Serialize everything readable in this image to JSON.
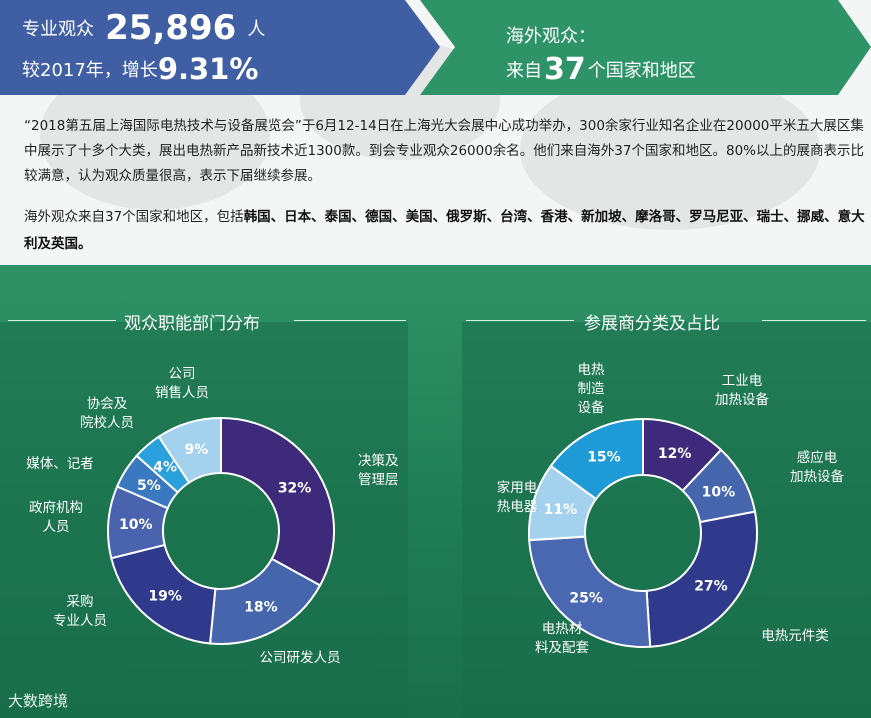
{
  "banner_left": {
    "label": "专业观众",
    "count": "25,896",
    "unit": "人",
    "compare_prefix": "较2017年，增长",
    "growth": "9.31%"
  },
  "banner_right": {
    "label": "海外观众：",
    "prefix": "来自",
    "count": "37",
    "suffix": "个国家和地区"
  },
  "intro": "“2018第五届上海国际电热技术与设备展览会”于6月12-14日在上海光大会展中心成功举办，300余家行业知名企业在20000平米五大展区集中展示了十多个大类，展出电热新产品新技术近1300款。到会专业观众26000余名。他们来自海外37个国家和地区。80%以上的展商表示比较满意，认为观众质量很高，表示下届继续参展。",
  "countries_prefix": "海外观众来自37个国家和地区，包括",
  "countries_list": "韩国、日本、泰国、德国、美国、俄罗斯、台湾、香港、新加坡、摩洛哥、罗马尼亚、瑞士、挪威、意大利及英国。",
  "watermark": "大数跨境",
  "colors": {
    "banner_blue": "#3f5ea3",
    "banner_green": "#2e9467",
    "purple": "#3e2a7a",
    "blue": "#4565ad",
    "navy": "#2f3a8c",
    "light_blue": "#a3d1ee",
    "sky_blue": "#2aa0dd",
    "mid_blue": "#3a78c0"
  },
  "chart_data": [
    {
      "type": "pie",
      "title": "观众职能部门分布",
      "slices": [
        {
          "label": "决策及\n管理层",
          "value": 32,
          "text": "32%",
          "color": "#3e2a7a"
        },
        {
          "label": "公司研发人员",
          "value": 18,
          "text": "18%",
          "color": "#4565ad"
        },
        {
          "label": "采购\n专业人员",
          "value": 19,
          "text": "19%",
          "color": "#2f3a8c"
        },
        {
          "label": "政府机构\n人员",
          "value": 10,
          "text": "10%",
          "color": "#4a63ae"
        },
        {
          "label": "媒体、记者",
          "value": 5,
          "text": "5%",
          "color": "#3a78c0"
        },
        {
          "label": "协会及\n院校人员",
          "value": 4,
          "text": "4%",
          "color": "#2aa0dd"
        },
        {
          "label": "公司\n销售人员",
          "value": 9,
          "text": "9%",
          "color": "#a3d1ee"
        }
      ]
    },
    {
      "type": "pie",
      "title": "参展商分类及占比",
      "slices": [
        {
          "label": "工业电\n加热设备",
          "value": 12,
          "text": "12%",
          "color": "#3e2a7a"
        },
        {
          "label": "感应电\n加热设备",
          "value": 10,
          "text": "10%",
          "color": "#4565ad"
        },
        {
          "label": "电热元件类",
          "value": 27,
          "text": "27%",
          "color": "#2f3a8c"
        },
        {
          "label": "电热材\n料及配套",
          "value": 25,
          "text": "25%",
          "color": "#4a68b2"
        },
        {
          "label": "家用电\n热电器",
          "value": 11,
          "text": "11%",
          "color": "#a3d1ee"
        },
        {
          "label": "电热\n制造\n设备",
          "value": 15,
          "text": "15%",
          "color": "#1e9ad6"
        }
      ]
    }
  ]
}
